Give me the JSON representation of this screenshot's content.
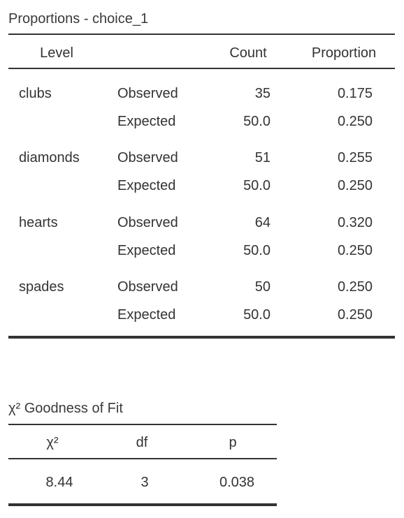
{
  "proportions_table": {
    "title": "Proportions - choice_1",
    "columns": [
      "Level",
      "Count",
      "Proportion"
    ],
    "groups": [
      {
        "level": "clubs",
        "rows": [
          [
            "Observed",
            "35",
            "0.175"
          ],
          [
            "Expected",
            "50.0",
            "0.250"
          ]
        ]
      },
      {
        "level": "diamonds",
        "rows": [
          [
            "Observed",
            "51",
            "0.255"
          ],
          [
            "Expected",
            "50.0",
            "0.250"
          ]
        ]
      },
      {
        "level": "hearts",
        "rows": [
          [
            "Observed",
            "64",
            "0.320"
          ],
          [
            "Expected",
            "50.0",
            "0.250"
          ]
        ]
      },
      {
        "level": "spades",
        "rows": [
          [
            "Observed",
            "50",
            "0.250"
          ],
          [
            "Expected",
            "50.0",
            "0.250"
          ]
        ]
      }
    ]
  },
  "goodness_of_fit_table": {
    "title": "χ² Goodness of Fit",
    "columns": [
      "χ²",
      "df",
      "p"
    ],
    "rows": [
      [
        "8.44",
        "3",
        "0.038"
      ]
    ]
  }
}
